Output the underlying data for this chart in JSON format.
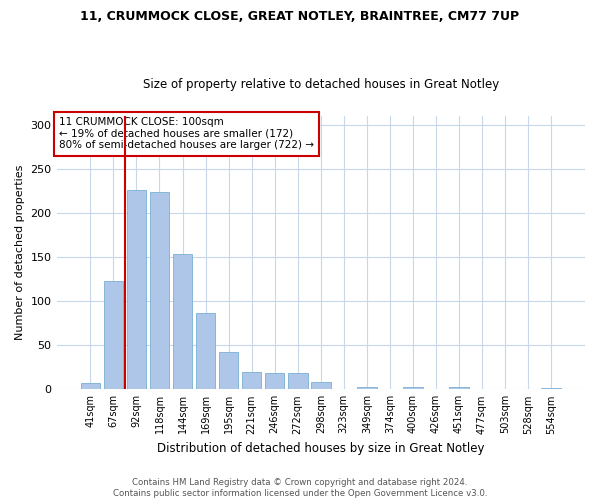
{
  "title1": "11, CRUMMOCK CLOSE, GREAT NOTLEY, BRAINTREE, CM77 7UP",
  "title2": "Size of property relative to detached houses in Great Notley",
  "xlabel": "Distribution of detached houses by size in Great Notley",
  "ylabel": "Number of detached properties",
  "bin_labels": [
    "41sqm",
    "67sqm",
    "92sqm",
    "118sqm",
    "144sqm",
    "169sqm",
    "195sqm",
    "221sqm",
    "246sqm",
    "272sqm",
    "298sqm",
    "323sqm",
    "349sqm",
    "374sqm",
    "400sqm",
    "426sqm",
    "451sqm",
    "477sqm",
    "503sqm",
    "528sqm",
    "554sqm"
  ],
  "bar_heights": [
    7,
    123,
    226,
    224,
    153,
    86,
    42,
    20,
    19,
    18,
    8,
    0,
    3,
    0,
    3,
    0,
    3,
    0,
    0,
    0,
    2
  ],
  "bar_color": "#aec6e8",
  "bar_edge_color": "#7aafd4",
  "redline_x": 1.5,
  "annotation_text": "11 CRUMMOCK CLOSE: 100sqm\n← 19% of detached houses are smaller (172)\n80% of semi-detached houses are larger (722) →",
  "annotation_box_color": "#ffffff",
  "annotation_box_edge": "#cc0000",
  "redline_color": "#cc0000",
  "ylim": [
    0,
    310
  ],
  "yticks": [
    0,
    50,
    100,
    150,
    200,
    250,
    300
  ],
  "footer": "Contains HM Land Registry data © Crown copyright and database right 2024.\nContains public sector information licensed under the Open Government Licence v3.0.",
  "background_color": "#ffffff",
  "grid_color": "#c8d8e8",
  "title1_fontsize": 9,
  "title2_fontsize": 8.5,
  "ylabel_fontsize": 8,
  "xlabel_fontsize": 8.5,
  "tick_fontsize": 7,
  "ytick_fontsize": 8,
  "footer_fontsize": 6.2,
  "annot_fontsize": 7.5
}
